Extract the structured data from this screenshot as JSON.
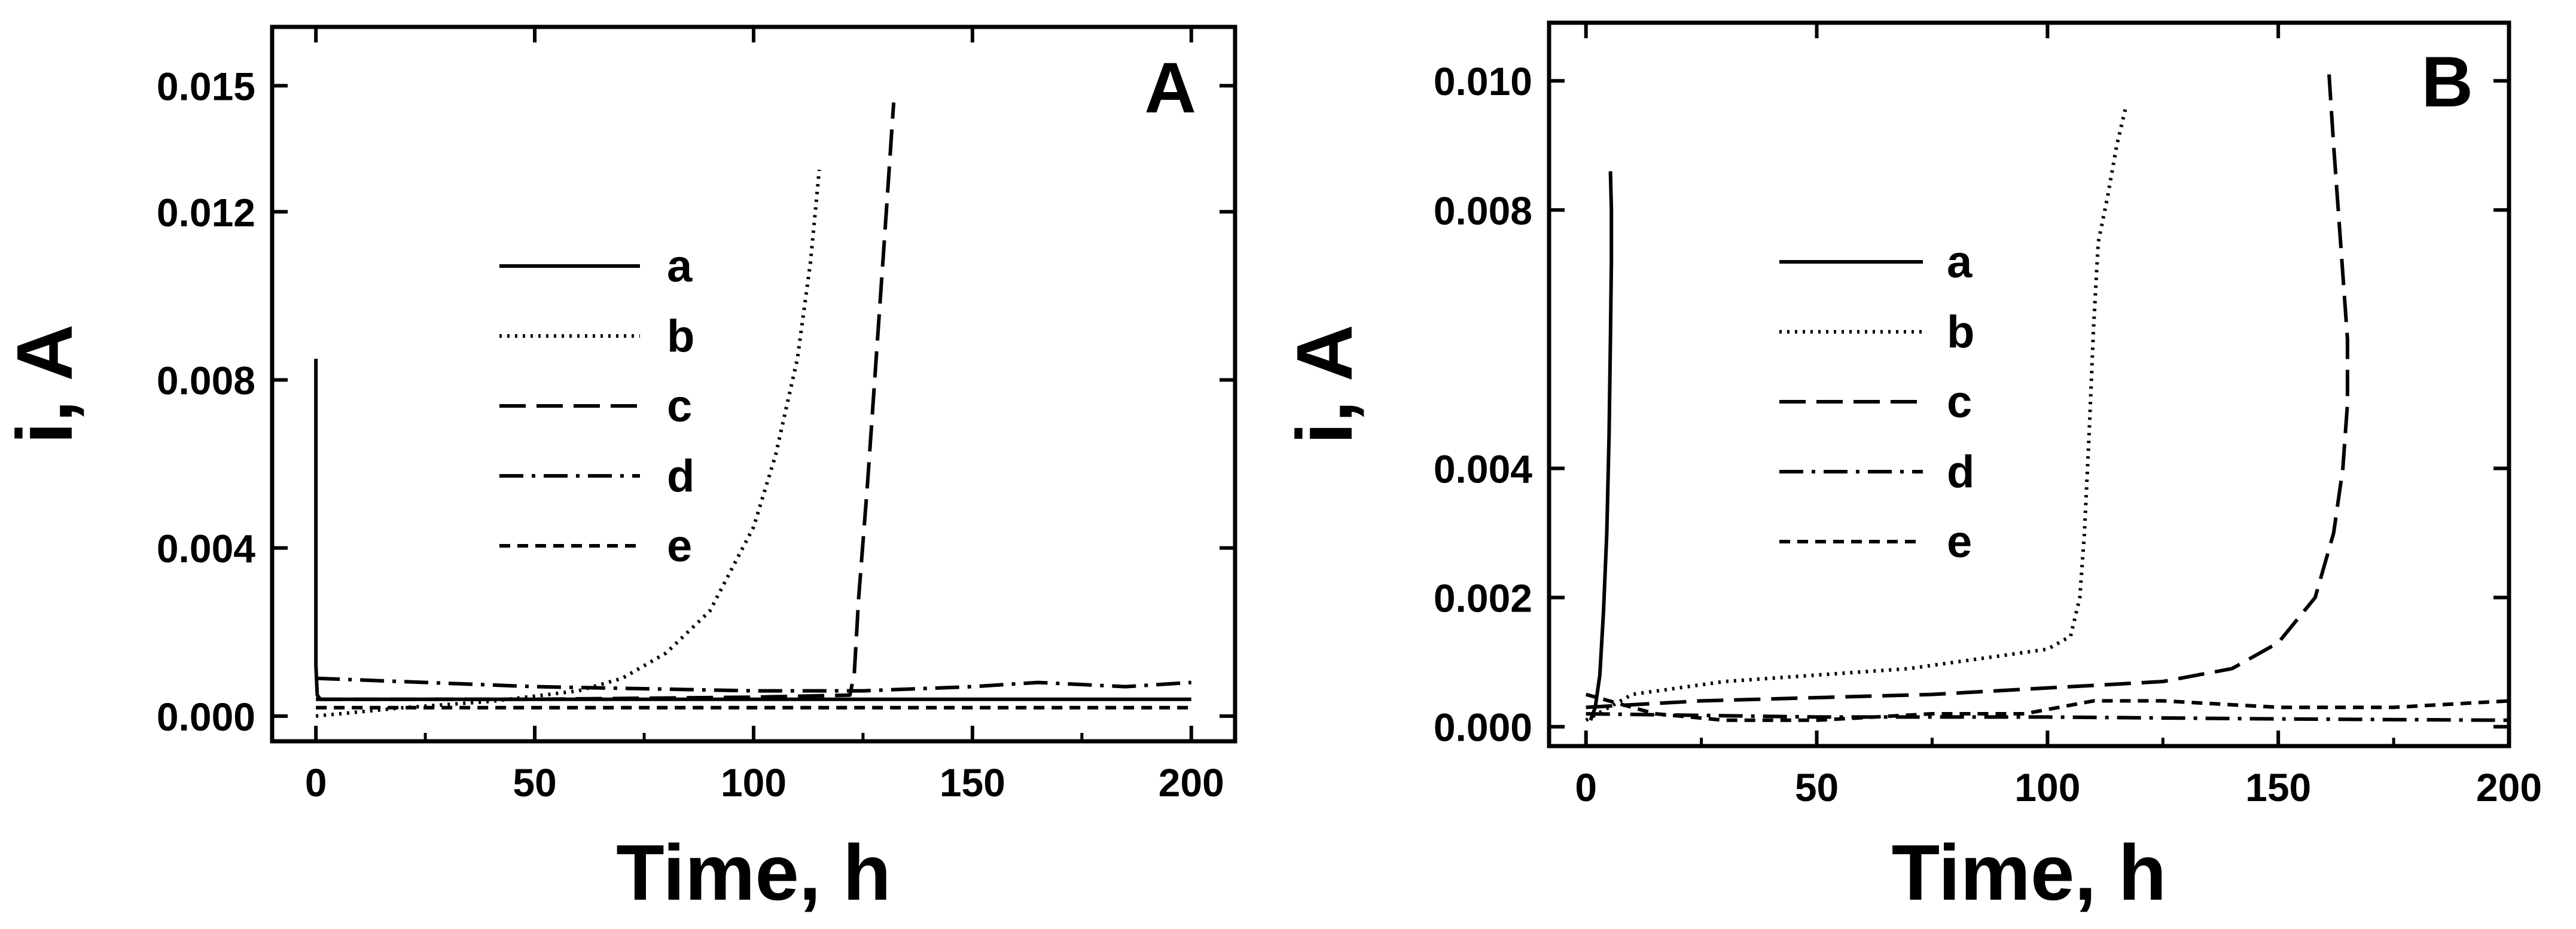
{
  "chart_data": [
    {
      "type": "line",
      "panel_label": "A",
      "xlabel": "Time, h",
      "ylabel": "i, A",
      "xlim": [
        -10,
        210
      ],
      "ylim": [
        -0.0006,
        0.0164
      ],
      "xticks": [
        0,
        50,
        100,
        150,
        200
      ],
      "xtick_labels": [
        "0",
        "50",
        "100",
        "150",
        "200"
      ],
      "yticks": [
        0.0,
        0.004,
        0.008,
        0.012,
        0.015
      ],
      "ytick_labels": [
        "0.000",
        "0.004",
        "0.008",
        "0.012",
        "0.015"
      ],
      "grid": false,
      "legend_position": "center",
      "series": [
        {
          "name": "a",
          "style": "solid",
          "x": [
            0,
            0,
            0.3,
            1,
            200
          ],
          "y": [
            0.0085,
            0.0012,
            0.0005,
            0.0004,
            0.0004
          ]
        },
        {
          "name": "b",
          "style": "dotted",
          "x": [
            0,
            20,
            40,
            60,
            70,
            80,
            90,
            100,
            105,
            110,
            113,
            115
          ],
          "y": [
            0.0,
            0.0002,
            0.00035,
            0.0006,
            0.0009,
            0.0015,
            0.0025,
            0.0045,
            0.0062,
            0.0085,
            0.0108,
            0.013
          ]
        },
        {
          "name": "c",
          "style": "dashed",
          "x": [
            0,
            50,
            100,
            122,
            123,
            124,
            126,
            128,
            130,
            132
          ],
          "y": [
            0.0004,
            0.0004,
            0.00045,
            0.0005,
            0.001,
            0.0028,
            0.0055,
            0.0085,
            0.0115,
            0.0146
          ]
        },
        {
          "name": "d",
          "style": "dashdot",
          "x": [
            0,
            50,
            100,
            125,
            150,
            165,
            185,
            200
          ],
          "y": [
            0.0009,
            0.0007,
            0.0006,
            0.0006,
            0.0007,
            0.0008,
            0.0007,
            0.0008
          ]
        },
        {
          "name": "e",
          "style": "short-dashed",
          "x": [
            0,
            50,
            100,
            150,
            200
          ],
          "y": [
            0.0002,
            0.0002,
            0.0002,
            0.0002,
            0.0002
          ]
        }
      ]
    },
    {
      "type": "line",
      "panel_label": "B",
      "xlabel": "Time, h",
      "ylabel": "i, A",
      "xlim": [
        -8,
        200
      ],
      "ylim": [
        -0.0003,
        0.0109
      ],
      "xticks": [
        0,
        50,
        100,
        150,
        200
      ],
      "xtick_labels": [
        "0",
        "50",
        "100",
        "150",
        "200"
      ],
      "yticks": [
        0.0,
        0.002,
        0.004,
        0.008,
        0.01
      ],
      "ytick_labels": [
        "0.000",
        "0.002",
        "0.004",
        "0.008",
        "0.010"
      ],
      "grid": false,
      "legend_position": "center",
      "series": [
        {
          "name": "a",
          "style": "solid",
          "x": [
            1,
            2,
            3,
            3.8,
            4.5,
            5,
            5.3,
            5.5,
            5.5,
            5.3
          ],
          "y": [
            0.0001,
            0.0003,
            0.0008,
            0.0018,
            0.003,
            0.0045,
            0.006,
            0.0072,
            0.008,
            0.0086
          ]
        },
        {
          "name": "b",
          "style": "dotted",
          "x": [
            0,
            10,
            30,
            50,
            70,
            90,
            100,
            105,
            107,
            108,
            109,
            110,
            111,
            113,
            115,
            117
          ],
          "y": [
            0.0001,
            0.0005,
            0.0007,
            0.0008,
            0.0009,
            0.0011,
            0.0012,
            0.0014,
            0.002,
            0.003,
            0.0045,
            0.0062,
            0.0075,
            0.0082,
            0.009,
            0.0096
          ]
        },
        {
          "name": "c",
          "style": "dashed",
          "x": [
            0,
            25,
            50,
            75,
            100,
            125,
            140,
            150,
            158,
            162,
            164,
            165,
            165,
            164,
            163,
            162,
            161
          ],
          "y": [
            0.0003,
            0.0004,
            0.00045,
            0.0005,
            0.0006,
            0.0007,
            0.0009,
            0.0013,
            0.002,
            0.003,
            0.004,
            0.005,
            0.006,
            0.007,
            0.008,
            0.009,
            0.0101
          ]
        },
        {
          "name": "d",
          "style": "dashdot",
          "x": [
            0,
            50,
            100,
            150,
            200
          ],
          "y": [
            0.0002,
            0.00015,
            0.00015,
            0.00012,
            0.0001
          ]
        },
        {
          "name": "e",
          "style": "short-dashed",
          "x": [
            0,
            15,
            30,
            50,
            75,
            95,
            110,
            125,
            150,
            175,
            200
          ],
          "y": [
            0.0005,
            0.0002,
            0.0001,
            0.0001,
            0.0002,
            0.0002,
            0.0004,
            0.0004,
            0.0003,
            0.0003,
            0.0004
          ]
        }
      ]
    }
  ]
}
